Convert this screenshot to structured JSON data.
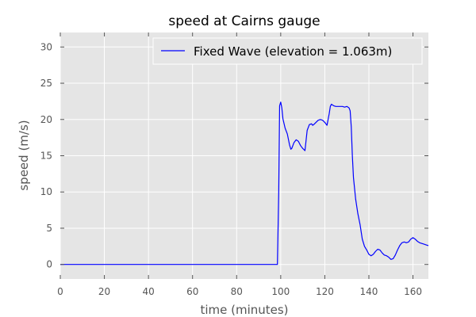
{
  "chart_data": {
    "type": "line",
    "title": "speed at Cairns gauge",
    "xlabel": "time (minutes)",
    "ylabel": "speed (m/s)",
    "xlim": [
      0,
      167
    ],
    "ylim": [
      -2,
      32
    ],
    "xticks": [
      0,
      20,
      40,
      60,
      80,
      100,
      120,
      140,
      160
    ],
    "yticks": [
      0,
      5,
      10,
      15,
      20,
      25,
      30
    ],
    "grid": true,
    "legend_position": "top-right",
    "series": [
      {
        "name": "Fixed Wave (elevation = 1.063m)",
        "color": "#0000ff",
        "x": [
          0,
          20,
          40,
          60,
          80,
          98.5,
          99.1,
          99.5,
          100.0,
          100.5,
          101.0,
          102.0,
          103.0,
          104.0,
          104.6,
          105.0,
          106.0,
          107.0,
          108.0,
          109.0,
          110.0,
          111.0,
          112.0,
          113.0,
          114.0,
          114.5,
          115.0,
          116.0,
          117.0,
          118.0,
          119.0,
          120.0,
          121.0,
          122.0,
          122.5,
          123.0,
          124.0,
          125.0,
          126.0,
          127.0,
          128.0,
          129.0,
          130.0,
          131.0,
          131.5,
          132.0,
          132.5,
          133.0,
          134.0,
          135.0,
          136.0,
          137.0,
          138.0,
          139.0,
          140.0,
          141.0,
          142.0,
          143.0,
          144.0,
          145.0,
          146.0,
          147.0,
          148.0,
          149.0,
          150.0,
          151.0,
          152.0,
          153.0,
          154.0,
          155.0,
          156.0,
          157.0,
          158.0,
          159.0,
          160.0,
          161.0,
          162.0,
          163.0,
          164.0,
          165.0,
          166.0,
          167.0
        ],
        "values": [
          0,
          0,
          0,
          0,
          0,
          0,
          10.0,
          21.9,
          22.4,
          21.6,
          20.1,
          18.8,
          18.0,
          16.5,
          15.9,
          16.0,
          16.8,
          17.2,
          17.0,
          16.4,
          16.0,
          15.7,
          18.5,
          19.3,
          19.4,
          19.2,
          19.3,
          19.6,
          19.9,
          20.0,
          19.9,
          19.6,
          19.2,
          20.8,
          21.8,
          22.1,
          21.9,
          21.8,
          21.8,
          21.8,
          21.8,
          21.7,
          21.8,
          21.6,
          21.2,
          19.0,
          15.0,
          12.0,
          9.0,
          7.0,
          5.5,
          3.5,
          2.5,
          2.0,
          1.4,
          1.2,
          1.4,
          1.8,
          2.1,
          2.0,
          1.6,
          1.3,
          1.2,
          1.0,
          0.7,
          0.8,
          1.3,
          2.0,
          2.6,
          3.0,
          3.1,
          3.0,
          3.1,
          3.5,
          3.7,
          3.5,
          3.2,
          3.0,
          2.9,
          2.8,
          2.7,
          2.6
        ]
      }
    ]
  }
}
